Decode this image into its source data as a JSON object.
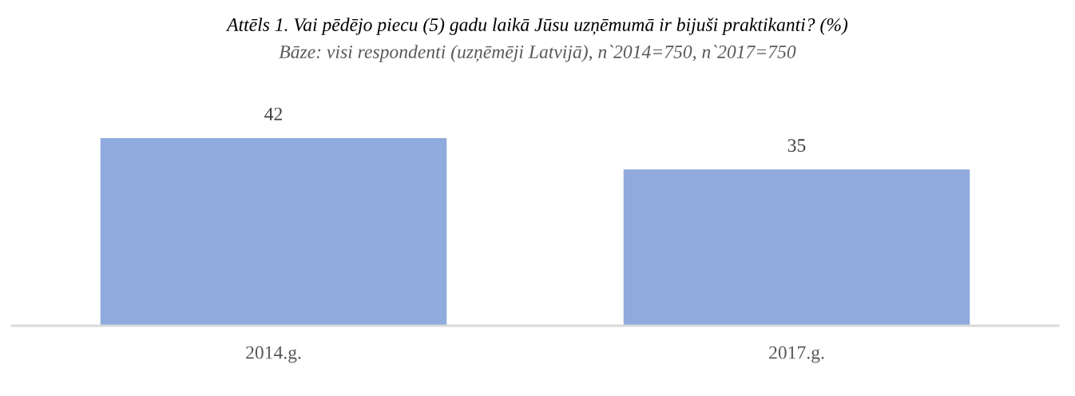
{
  "chart_data": {
    "type": "bar",
    "title": "Attēls 1. Vai pēdējo piecu (5) gadu laikā Jūsu uzņēmumā ir bijuši praktikanti? (%)",
    "subtitle": "Bāze: visi respondenti (uzņēmēji Latvijā), n`2014=750, n`2017=750",
    "categories": [
      "2014.g.",
      "2017.g."
    ],
    "values": [
      42,
      35
    ],
    "color": "#8faadc",
    "data_labels": true
  }
}
